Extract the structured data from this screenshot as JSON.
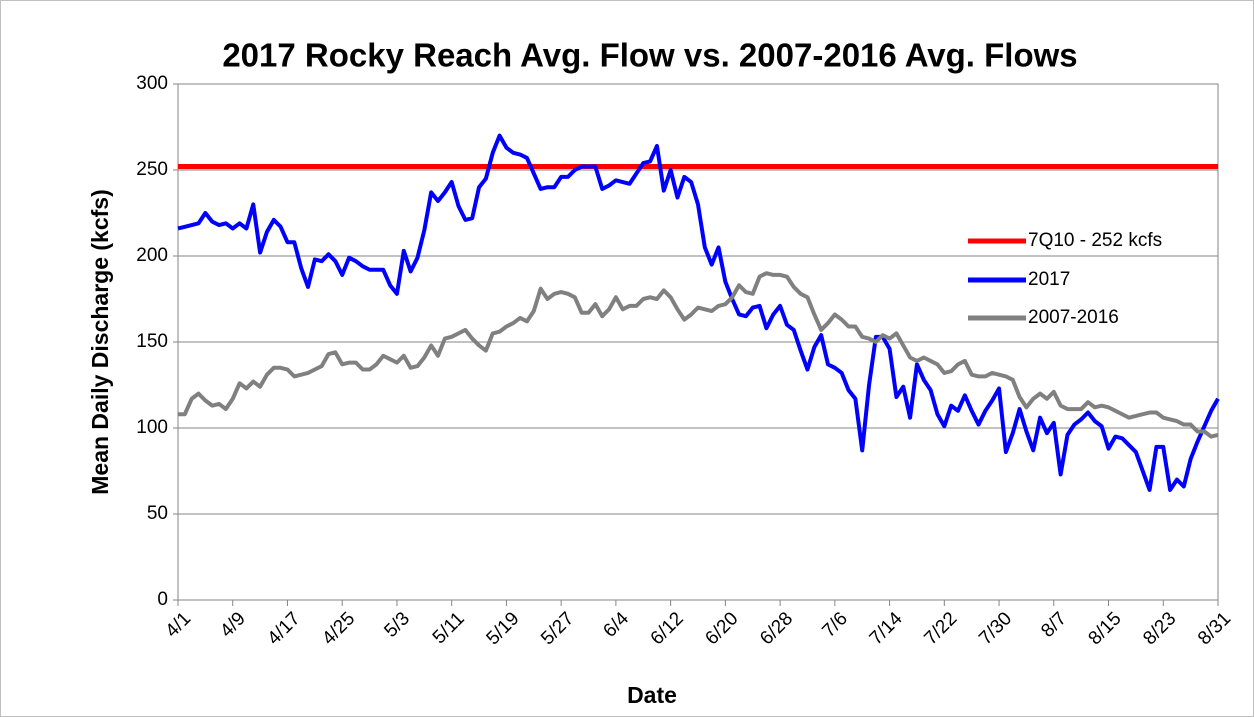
{
  "chart_data": {
    "type": "line",
    "title": "2017 Rocky Reach Avg. Flow vs. 2007-2016 Avg. Flows",
    "x_label": "Date",
    "y_label": "Mean Daily Discharge (kcfs)",
    "categories": [
      "4/1",
      null,
      null,
      null,
      null,
      null,
      null,
      null,
      "4/9",
      null,
      null,
      null,
      null,
      null,
      null,
      null,
      "4/17",
      null,
      null,
      null,
      null,
      null,
      null,
      null,
      "4/25",
      null,
      null,
      null,
      null,
      null,
      null,
      null,
      "5/3",
      null,
      null,
      null,
      null,
      null,
      null,
      null,
      "5/11",
      null,
      null,
      null,
      null,
      null,
      null,
      null,
      "5/19",
      null,
      null,
      null,
      null,
      null,
      null,
      null,
      "5/27",
      null,
      null,
      null,
      null,
      null,
      null,
      null,
      "6/4",
      null,
      null,
      null,
      null,
      null,
      null,
      null,
      "6/12",
      null,
      null,
      null,
      null,
      null,
      null,
      null,
      "6/20",
      null,
      null,
      null,
      null,
      null,
      null,
      null,
      "6/28",
      null,
      null,
      null,
      null,
      null,
      null,
      null,
      "7/6",
      null,
      null,
      null,
      null,
      null,
      null,
      null,
      "7/14",
      null,
      null,
      null,
      null,
      null,
      null,
      null,
      "7/22",
      null,
      null,
      null,
      null,
      null,
      null,
      null,
      "7/30",
      null,
      null,
      null,
      null,
      null,
      null,
      null,
      "8/7",
      null,
      null,
      null,
      null,
      null,
      null,
      null,
      "8/15",
      null,
      null,
      null,
      null,
      null,
      null,
      null,
      "8/23",
      null,
      null,
      null,
      null,
      null,
      null,
      null,
      "8/31"
    ],
    "reference_line": {
      "name": "7Q10 - 252 kcfs",
      "value": 252,
      "color": "#ff0000"
    },
    "series": [
      {
        "name": "2017",
        "color": "#0000ff",
        "values": [
          216,
          217,
          218,
          219,
          225,
          220,
          218,
          219,
          216,
          219,
          216,
          230,
          202,
          214,
          221,
          217,
          208,
          208,
          193,
          182,
          198,
          197,
          201,
          197,
          189,
          199,
          197,
          194,
          192,
          192,
          192,
          183,
          178,
          203,
          191,
          199,
          215,
          237,
          232,
          237,
          243,
          229,
          221,
          222,
          240,
          245,
          260,
          270,
          263,
          260,
          259,
          257,
          248,
          239,
          240,
          240,
          246,
          246,
          250,
          252,
          252,
          252,
          239,
          241,
          244,
          243,
          242,
          248,
          254,
          255,
          264,
          238,
          250,
          234,
          246,
          243,
          230,
          205,
          195,
          205,
          185,
          175,
          166,
          165,
          170,
          171,
          158,
          166,
          171,
          160,
          157,
          145,
          134,
          147,
          154,
          137,
          135,
          132,
          122,
          117,
          87,
          125,
          153,
          153,
          146,
          118,
          124,
          106,
          137,
          128,
          122,
          108,
          101,
          113,
          110,
          119,
          110,
          102,
          110,
          116,
          123,
          86,
          97,
          111,
          98,
          87,
          106,
          97,
          103,
          73,
          96,
          102,
          105,
          109,
          104,
          101,
          88,
          95,
          94,
          90,
          86,
          75,
          64,
          89,
          89,
          64,
          70,
          66,
          82,
          92,
          101,
          110,
          117
        ]
      },
      {
        "name": "2007-2016",
        "color": "#808080",
        "values": [
          108,
          108,
          117,
          120,
          116,
          113,
          114,
          111,
          117,
          126,
          123,
          127,
          124,
          131,
          135,
          135,
          134,
          130,
          131,
          132,
          134,
          136,
          143,
          144,
          137,
          138,
          138,
          134,
          134,
          137,
          142,
          140,
          138,
          142,
          135,
          136,
          141,
          148,
          142,
          152,
          153,
          155,
          157,
          152,
          148,
          145,
          155,
          156,
          159,
          161,
          164,
          162,
          168,
          181,
          175,
          178,
          179,
          178,
          176,
          167,
          167,
          172,
          165,
          169,
          176,
          169,
          171,
          171,
          175,
          176,
          175,
          180,
          176,
          169,
          163,
          166,
          170,
          169,
          168,
          171,
          172,
          176,
          183,
          179,
          178,
          188,
          190,
          189,
          189,
          188,
          182,
          178,
          176,
          166,
          157,
          161,
          166,
          163,
          159,
          159,
          153,
          152,
          150,
          154,
          152,
          155,
          148,
          141,
          139,
          141,
          139,
          137,
          132,
          133,
          137,
          139,
          131,
          130,
          130,
          132,
          131,
          130,
          128,
          118,
          112,
          117,
          120,
          117,
          121,
          113,
          111,
          111,
          111,
          115,
          112,
          113,
          112,
          110,
          108,
          106,
          107,
          108,
          109,
          109,
          106,
          105,
          104,
          102,
          102,
          98,
          98,
          95,
          96
        ]
      }
    ],
    "ylim": [
      0,
      300
    ],
    "yticks": [
      0,
      50,
      100,
      150,
      200,
      250,
      300
    ],
    "grid": true
  }
}
